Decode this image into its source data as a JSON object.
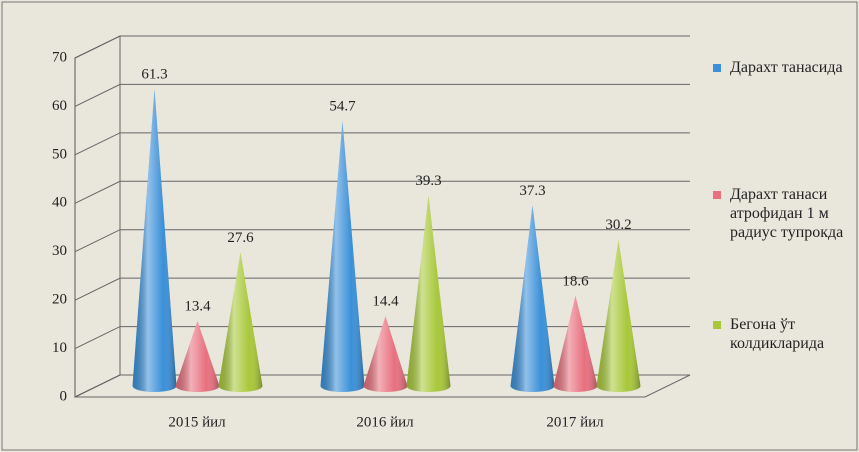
{
  "chart_data": {
    "type": "cone",
    "categories": [
      "2015 йил",
      "2016 йил",
      "2017 йил"
    ],
    "series": [
      {
        "name": "Дарахт танасида",
        "color": "#3a8fd8",
        "values": [
          61.3,
          54.7,
          37.3
        ]
      },
      {
        "name": "Дарахт танаси атрофидан 1 м радиус тупрокда",
        "color": "#e8707e",
        "values": [
          13.4,
          14.4,
          18.6
        ]
      },
      {
        "name": "Бегона ўт колдикларида",
        "color": "#a8c83a",
        "values": [
          27.6,
          39.3,
          30.2
        ]
      }
    ],
    "ylim": [
      0,
      70
    ],
    "yticks": [
      0,
      10,
      20,
      30,
      40,
      50,
      60,
      70
    ],
    "grid": true,
    "legend": "right"
  }
}
